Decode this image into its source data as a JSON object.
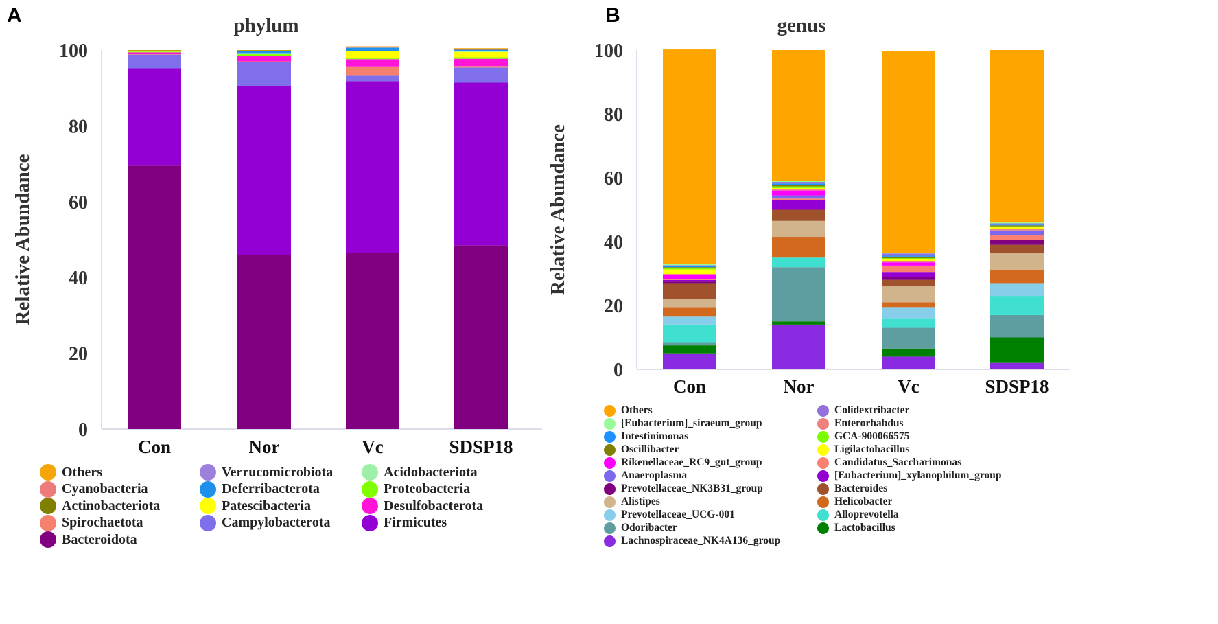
{
  "panel_labels": {
    "a": "A",
    "b": "B"
  },
  "colors": {
    "Others": "#F5A50A",
    "Cyanobacteria": "#EE7B7B",
    "Actinobacteriota": "#7F7F00",
    "Spirochaetota": "#F5806E",
    "Bacteroidota": "#800080",
    "Verrucomicrobiota": "#9E7FDB",
    "Deferribacterota": "#1E8FEB",
    "Patescibacteria": "#FFFF00",
    "Campylobacterota": "#7F6FEA",
    "Acidobacteriota": "#9EF0A8",
    "Proteobacteria": "#7FFF00",
    "Desulfobacterota": "#FF14D8",
    "Firmicutes": "#9400D3",
    "Others_g": "#FFA500",
    "[Eubacterium]_siraeum_group": "#98FB98",
    "Intestinimonas": "#1E90FF",
    "Oscillibacter": "#808000",
    "Rikenellaceae_RC9_gut_group": "#FF00FF",
    "Anaeroplasma": "#7B68EE",
    "Prevotellaceae_NK3B31_group": "#800080",
    "Alistipes": "#D2B48C",
    "Prevotellaceae_UCG-001": "#87CEEB",
    "Odoribacter": "#5F9EA0",
    "Lachnospiraceae_NK4A136_group": "#8A2BE2",
    "Colidextribacter": "#9370DB",
    "Enterorhabdus": "#F08080",
    "GCA-900066575": "#7CFC00",
    "Ligilactobacillus": "#FFFF00",
    "Candidatus_Saccharimonas": "#FA8072",
    "[Eubacterium]_xylanophilum_group": "#9400D3",
    "Bacteroides": "#A0522D",
    "Helicobacter": "#D2691E",
    "Alloprevotella": "#40E0D0",
    "Lactobacillus": "#008000"
  },
  "chart_data": [
    {
      "type": "bar",
      "stacked": true,
      "title": "phylum",
      "xlabel": "",
      "ylabel": "Relative Abundance",
      "ylim": [
        0,
        100
      ],
      "yticks": [
        "0",
        "20",
        "40",
        "60",
        "80",
        "100"
      ],
      "categories": [
        "Con",
        "Nor",
        "Vc",
        "SDSP18"
      ],
      "series": [
        {
          "name": "Bacteroidota",
          "values": [
            69.5,
            46.0,
            46.5,
            48.5
          ]
        },
        {
          "name": "Firmicutes",
          "values": [
            25.7,
            44.5,
            45.3,
            42.9
          ]
        },
        {
          "name": "Campylobacterota",
          "values": [
            3.6,
            6.3,
            1.6,
            4.0
          ]
        },
        {
          "name": "Spirochaetota",
          "values": [
            0.3,
            0.2,
            2.3,
            0.4
          ]
        },
        {
          "name": "Desulfobacterota",
          "values": [
            0.3,
            1.5,
            1.9,
            1.9
          ]
        },
        {
          "name": "Proteobacteria",
          "values": [
            0.2,
            0.4,
            0.2,
            0.4
          ]
        },
        {
          "name": "Patescibacteria",
          "values": [
            0.1,
            0.2,
            1.9,
            1.4
          ]
        },
        {
          "name": "Acidobacteriota",
          "values": [
            0.1,
            0.1,
            0.1,
            0.3
          ]
        },
        {
          "name": "Deferribacterota",
          "values": [
            0.0,
            0.5,
            0.8,
            0.2
          ]
        },
        {
          "name": "Verrucomicrobiota",
          "values": [
            0.0,
            0.1,
            0.1,
            0.1
          ]
        },
        {
          "name": "Actinobacteriota",
          "values": [
            0.1,
            0.1,
            0.1,
            0.1
          ]
        },
        {
          "name": "Cyanobacteria",
          "values": [
            0.0,
            0.0,
            0.0,
            0.1
          ]
        },
        {
          "name": "Others",
          "values": [
            0.1,
            0.1,
            0.2,
            0.2
          ]
        }
      ],
      "legend": {
        "columns": [
          [
            "Others",
            "Cyanobacteria",
            "Actinobacteriota",
            "Spirochaetota",
            "Bacteroidota"
          ],
          [
            "Verrucomicrobiota",
            "Deferribacterota",
            "Patescibacteria",
            "Campylobacterota"
          ],
          [
            "Acidobacteriota",
            "Proteobacteria",
            "Desulfobacterota",
            "Firmicutes"
          ]
        ]
      }
    },
    {
      "type": "bar",
      "stacked": true,
      "title": "genus",
      "xlabel": "",
      "ylabel": "Relative Abundance",
      "ylim": [
        0,
        100
      ],
      "yticks": [
        "0",
        "20",
        "40",
        "60",
        "80",
        "100"
      ],
      "categories": [
        "Con",
        "Nor",
        "Vc",
        "SDSP18"
      ],
      "series": [
        {
          "name": "Lachnospiraceae_NK4A136_group",
          "values": [
            5.0,
            14.0,
            4.0,
            2.0
          ]
        },
        {
          "name": "Lactobacillus",
          "values": [
            2.5,
            1.0,
            2.5,
            8.0
          ]
        },
        {
          "name": "Odoribacter",
          "values": [
            1.0,
            17.0,
            6.5,
            7.0
          ]
        },
        {
          "name": "Alloprevotella",
          "values": [
            5.5,
            3.0,
            3.0,
            6.0
          ]
        },
        {
          "name": "Prevotellaceae_UCG-001",
          "values": [
            2.5,
            0.0,
            3.5,
            4.0
          ]
        },
        {
          "name": "Helicobacter",
          "values": [
            3.0,
            6.5,
            1.5,
            4.0
          ]
        },
        {
          "name": "Alistipes",
          "values": [
            2.5,
            5.0,
            5.0,
            5.5
          ]
        },
        {
          "name": "Bacteroides",
          "values": [
            5.0,
            3.5,
            2.0,
            2.5
          ]
        },
        {
          "name": "Prevotellaceae_NK3B31_group",
          "values": [
            0.5,
            0.0,
            1.0,
            1.5
          ]
        },
        {
          "name": "[Eubacterium]_xylanophilum_group",
          "values": [
            0.5,
            3.0,
            1.5,
            0.0
          ]
        },
        {
          "name": "Candidatus_Saccharimonas",
          "values": [
            0.3,
            0.5,
            2.0,
            1.5
          ]
        },
        {
          "name": "Anaeroplasma",
          "values": [
            0.0,
            1.0,
            0.0,
            1.5
          ]
        },
        {
          "name": "Rikenellaceae_RC9_gut_group",
          "values": [
            1.5,
            1.5,
            1.0,
            0.0
          ]
        },
        {
          "name": "Enterorhabdus",
          "values": [
            0.0,
            0.5,
            0.5,
            0.5
          ]
        },
        {
          "name": "Ligilactobacillus",
          "values": [
            1.5,
            0.3,
            0.5,
            0.5
          ]
        },
        {
          "name": "GCA-900066575",
          "values": [
            0.3,
            0.5,
            0.3,
            0.3
          ]
        },
        {
          "name": "Oscillibacter",
          "values": [
            0.4,
            0.5,
            0.5,
            0.3
          ]
        },
        {
          "name": "Intestinimonas",
          "values": [
            0.3,
            0.4,
            0.3,
            0.2
          ]
        },
        {
          "name": "Colidextribacter",
          "values": [
            0.3,
            0.5,
            0.7,
            0.4
          ]
        },
        {
          "name": "[Eubacterium]_siraeum_group",
          "values": [
            0.4,
            0.3,
            0.2,
            0.3
          ]
        },
        {
          "name": "Others",
          "values": [
            67.2,
            41.0,
            63.1,
            54.0
          ]
        }
      ],
      "legend": {
        "columns": [
          [
            "Others",
            "[Eubacterium]_siraeum_group",
            "Intestinimonas",
            "Oscillibacter",
            "Rikenellaceae_RC9_gut_group",
            "Anaeroplasma",
            "Prevotellaceae_NK3B31_group",
            "Alistipes",
            "Prevotellaceae_UCG-001",
            "Odoribacter",
            "Lachnospiraceae_NK4A136_group"
          ],
          [
            "Colidextribacter",
            "Enterorhabdus",
            "GCA-900066575",
            "Ligilactobacillus",
            "Candidatus_Saccharimonas",
            "[Eubacterium]_xylanophilum_group",
            "Bacteroides",
            "Helicobacter",
            "Alloprevotella",
            "Lactobacillus"
          ]
        ]
      }
    }
  ]
}
